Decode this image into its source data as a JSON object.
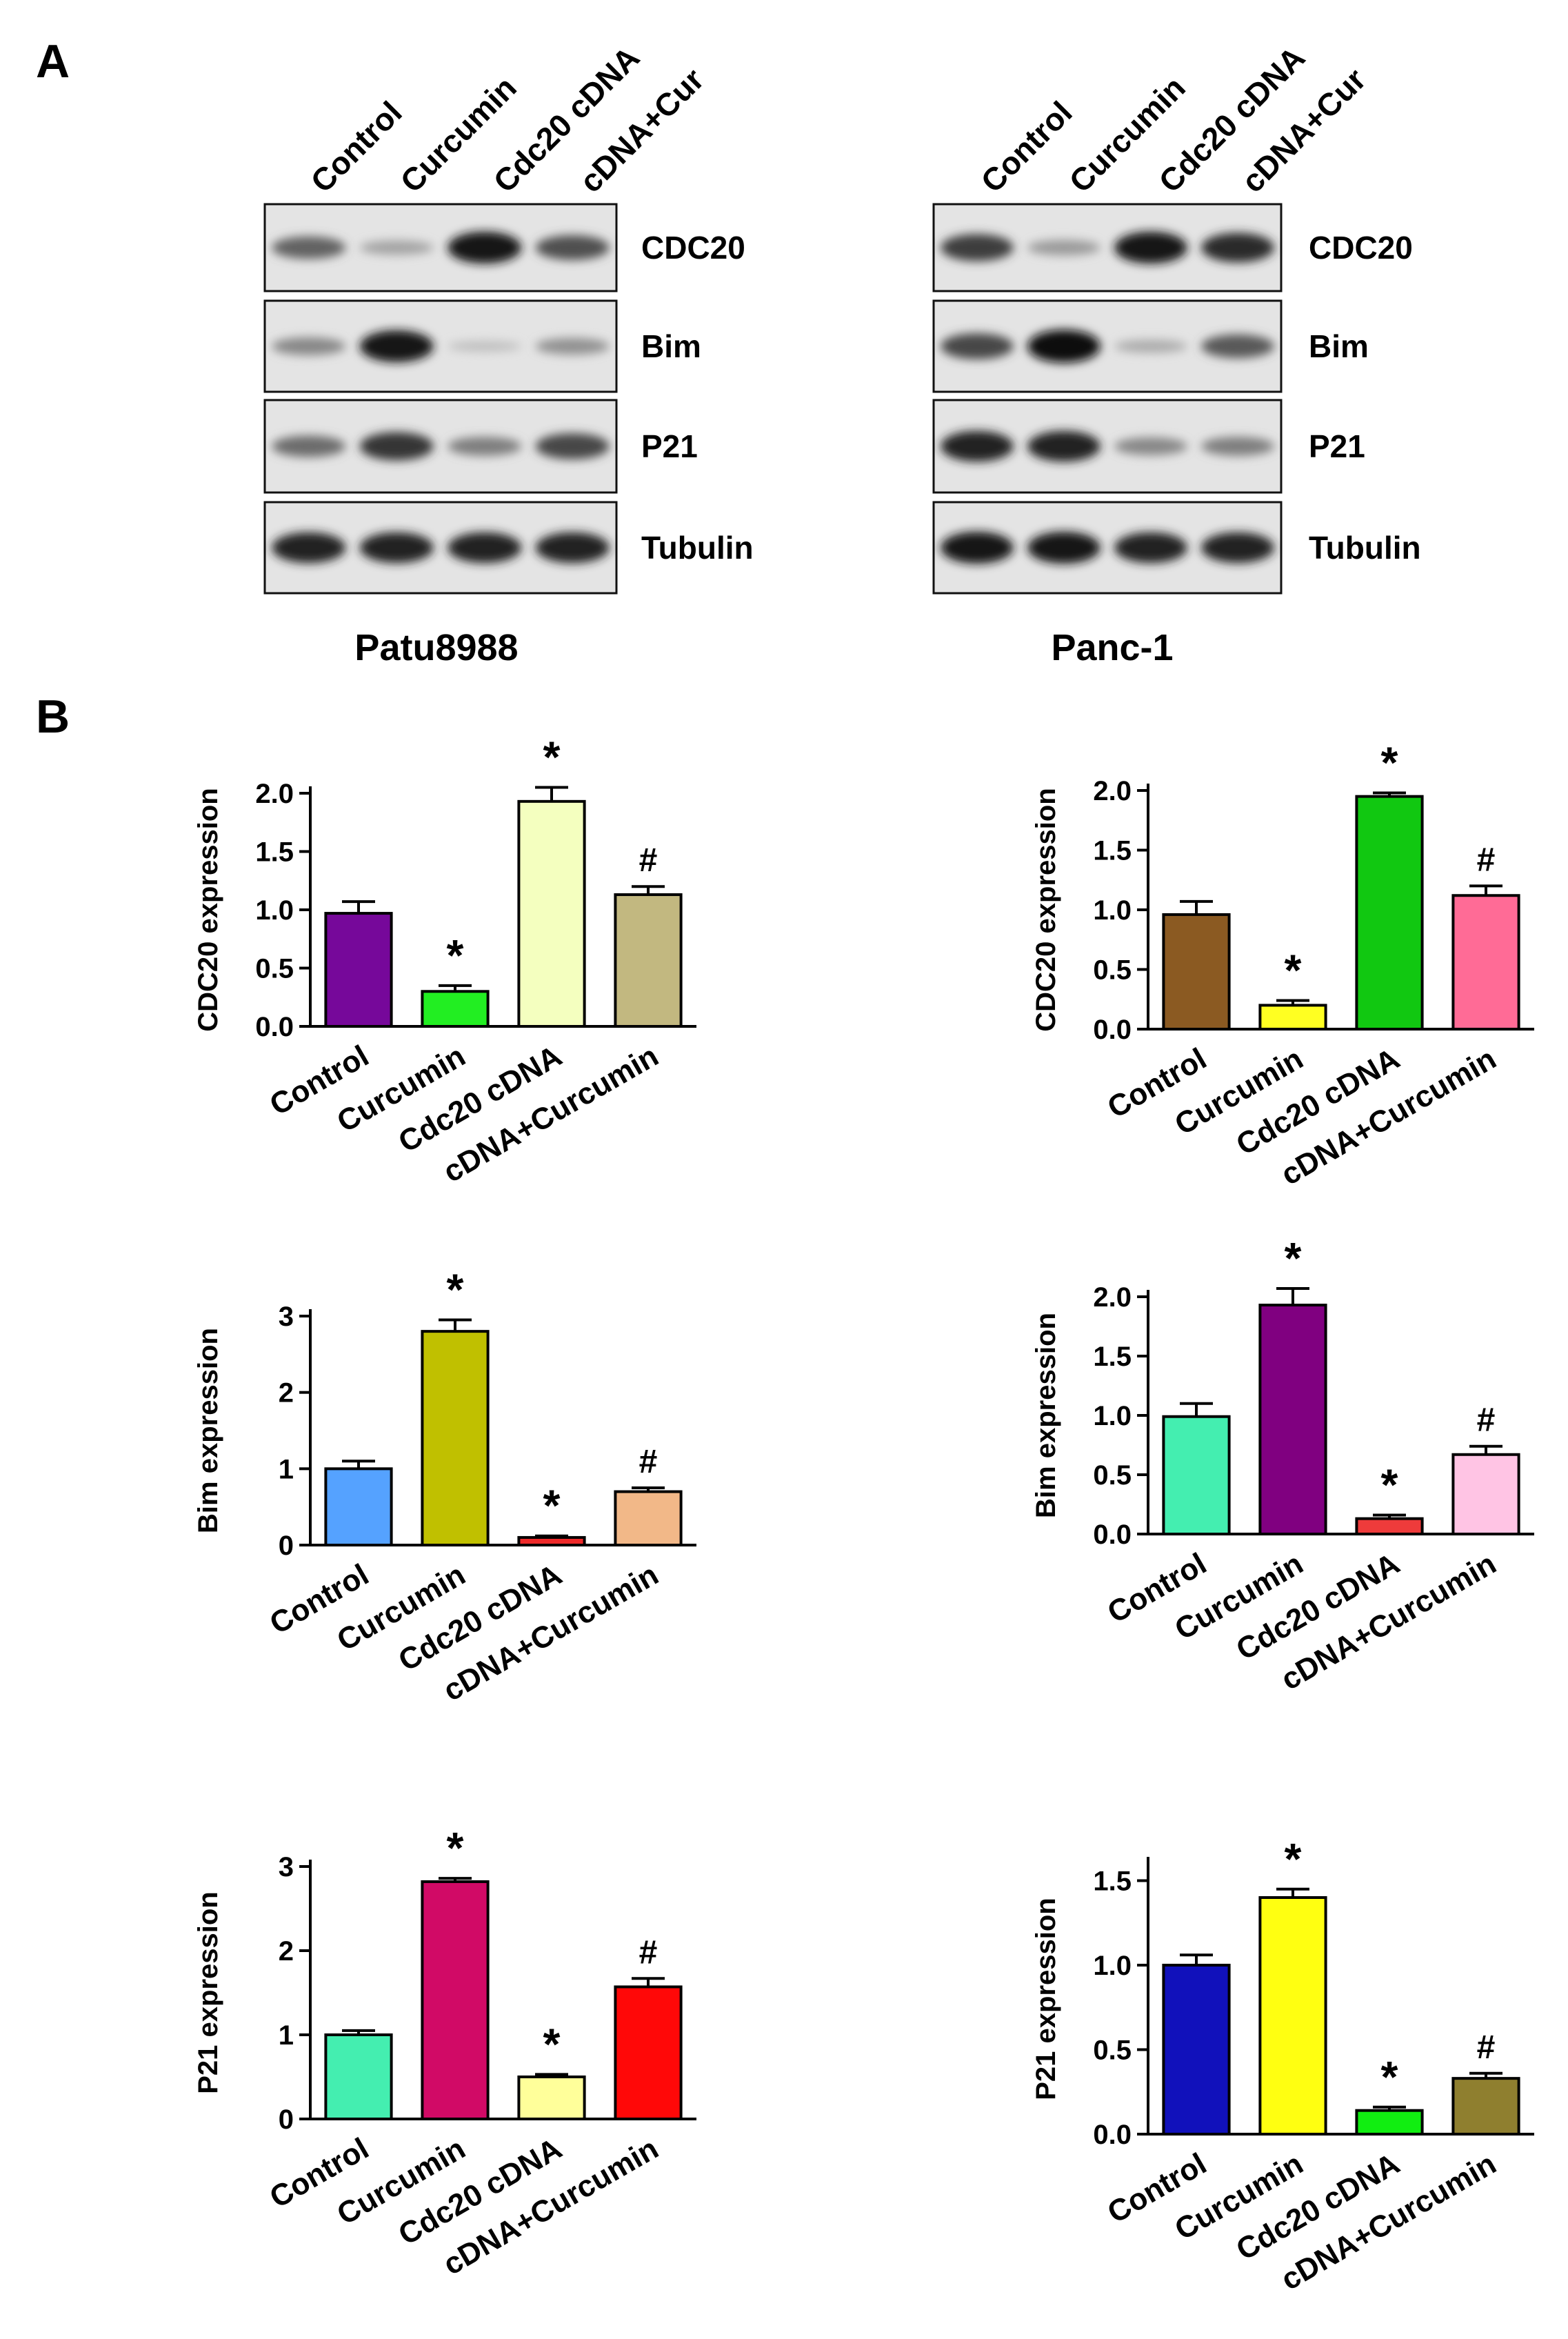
{
  "panels": {
    "a_label": "A",
    "b_label": "B"
  },
  "western_blots": [
    {
      "cell_line": "Patu8988",
      "lanes": [
        "Control",
        "Curcumin",
        "Cdc20 cDNA",
        "cDNA+Cur"
      ],
      "rows": [
        {
          "protein": "CDC20",
          "intensity": [
            0.55,
            0.2,
            0.95,
            0.65
          ]
        },
        {
          "protein": "Bim",
          "intensity": [
            0.35,
            0.95,
            0.05,
            0.3
          ]
        },
        {
          "protein": "P21",
          "intensity": [
            0.5,
            0.8,
            0.4,
            0.7
          ]
        },
        {
          "protein": "Tubulin",
          "intensity": [
            0.9,
            0.9,
            0.9,
            0.9
          ]
        }
      ]
    },
    {
      "cell_line": "Panc-1",
      "lanes": [
        "Control",
        "Curcumin",
        "Cdc20 cDNA",
        "cDNA+Cur"
      ],
      "rows": [
        {
          "protein": "CDC20",
          "intensity": [
            0.75,
            0.25,
            0.95,
            0.85
          ]
        },
        {
          "protein": "Bim",
          "intensity": [
            0.7,
            1.0,
            0.15,
            0.6
          ]
        },
        {
          "protein": "P21",
          "intensity": [
            0.9,
            0.9,
            0.35,
            0.4
          ]
        },
        {
          "protein": "Tubulin",
          "intensity": [
            0.95,
            0.95,
            0.9,
            0.9
          ]
        }
      ]
    }
  ],
  "chart_data": [
    {
      "type": "bar",
      "ylabel": "CDC20 expression",
      "categories": [
        "Control",
        "Curcumin",
        "Cdc20 cDNA",
        "cDNA+Curcumin"
      ],
      "values": [
        0.97,
        0.3,
        1.93,
        1.13
      ],
      "errors": [
        0.1,
        0.05,
        0.12,
        0.07
      ],
      "markers": [
        "",
        "*",
        "*",
        "#"
      ],
      "colors": [
        "#76089a",
        "#22ee22",
        "#f4ffbf",
        "#c2b880"
      ],
      "ylim": [
        0,
        2.0
      ],
      "yticks": [
        "0.0",
        "0.5",
        "1.0",
        "1.5",
        "2.0"
      ]
    },
    {
      "type": "bar",
      "ylabel": "CDC20 expression",
      "categories": [
        "Control",
        "Curcumin",
        "Cdc20 cDNA",
        "cDNA+Curcumin"
      ],
      "values": [
        0.96,
        0.2,
        1.95,
        1.12
      ],
      "errors": [
        0.11,
        0.04,
        0.03,
        0.08
      ],
      "markers": [
        "",
        "*",
        "*",
        "#"
      ],
      "colors": [
        "#8b5a22",
        "#ffff22",
        "#11c811",
        "#ff6b96"
      ],
      "ylim": [
        0,
        2.0
      ],
      "yticks": [
        "0.0",
        "0.5",
        "1.0",
        "1.5",
        "2.0"
      ]
    },
    {
      "type": "bar",
      "ylabel": "Bim expression",
      "categories": [
        "Control",
        "Curcumin",
        "Cdc20 cDNA",
        "cDNA+Curcumin"
      ],
      "values": [
        1.0,
        2.8,
        0.1,
        0.7
      ],
      "errors": [
        0.1,
        0.15,
        0.02,
        0.05
      ],
      "markers": [
        "",
        "*",
        "*",
        "#"
      ],
      "colors": [
        "#55a2ff",
        "#c0c000",
        "#ee2a2a",
        "#f2b888"
      ],
      "ylim": [
        0,
        3
      ],
      "yticks": [
        "0",
        "1",
        "2",
        "3"
      ]
    },
    {
      "type": "bar",
      "ylabel": "Bim expression",
      "categories": [
        "Control",
        "Curcumin",
        "Cdc20 cDNA",
        "cDNA+Curcumin"
      ],
      "values": [
        0.99,
        1.93,
        0.13,
        0.67
      ],
      "errors": [
        0.11,
        0.14,
        0.03,
        0.07
      ],
      "markers": [
        "",
        "*",
        "*",
        "#"
      ],
      "colors": [
        "#44eeb0",
        "#800080",
        "#ee3b3b",
        "#ffc4e4"
      ],
      "ylim": [
        0,
        2.0
      ],
      "yticks": [
        "0.0",
        "0.5",
        "1.0",
        "1.5",
        "2.0"
      ]
    },
    {
      "type": "bar",
      "ylabel": "P21 expression",
      "categories": [
        "Control",
        "Curcumin",
        "Cdc20 cDNA",
        "cDNA+Curcumin"
      ],
      "values": [
        1.0,
        2.82,
        0.5,
        1.57
      ],
      "errors": [
        0.05,
        0.04,
        0.03,
        0.1
      ],
      "markers": [
        "",
        "*",
        "*",
        "#"
      ],
      "colors": [
        "#44eeb0",
        "#d10a66",
        "#ffff9a",
        "#ff0808"
      ],
      "ylim": [
        0,
        3
      ],
      "yticks": [
        "0",
        "1",
        "2",
        "3"
      ]
    },
    {
      "type": "bar",
      "ylabel": "P21 expression",
      "categories": [
        "Control",
        "Curcumin",
        "Cdc20 cDNA",
        "cDNA+Curcumin"
      ],
      "values": [
        1.0,
        1.4,
        0.14,
        0.33
      ],
      "errors": [
        0.06,
        0.05,
        0.02,
        0.03
      ],
      "markers": [
        "",
        "*",
        "*",
        "#"
      ],
      "colors": [
        "#1111bb",
        "#ffff11",
        "#11ee11",
        "#8f7f2f"
      ],
      "ylim": [
        0,
        1.6
      ],
      "yticks": [
        "0.0",
        "0.5",
        "1.0",
        "1.5"
      ]
    }
  ]
}
